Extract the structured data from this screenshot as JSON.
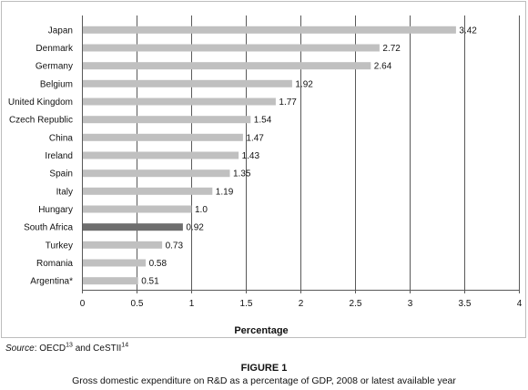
{
  "chart_data": {
    "type": "bar",
    "orientation": "horizontal",
    "categories": [
      "Japan",
      "Denmark",
      "Germany",
      "Belgium",
      "United Kingdom",
      "Czech Republic",
      "China",
      "Ireland",
      "Spain",
      "Italy",
      "Hungary",
      "South Africa",
      "Turkey",
      "Romania",
      "Argentina*"
    ],
    "values": [
      3.42,
      2.72,
      2.64,
      1.92,
      1.77,
      1.54,
      1.47,
      1.43,
      1.35,
      1.19,
      1.0,
      0.92,
      0.73,
      0.58,
      0.51
    ],
    "value_labels": [
      "3.42",
      "2.72",
      "2.64",
      "1.92",
      "1.77",
      "1.54",
      "1.47",
      "1.43",
      "1.35",
      "1.19",
      "1.0",
      "0.92",
      "0.73",
      "0.58",
      "0.51"
    ],
    "highlight_category": "South Africa",
    "xlabel": "Percentage",
    "xlim": [
      0,
      4
    ],
    "xticks": [
      0,
      0.5,
      1,
      1.5,
      2,
      2.5,
      3,
      3.5,
      4
    ],
    "xtick_labels": [
      "0",
      "0.5",
      "1",
      "1.5",
      "2",
      "2.5",
      "3",
      "3.5",
      "4"
    ],
    "grid": "vertical",
    "colors": {
      "bar": "#c0c0c0",
      "highlight_bar": "#6e6e6e",
      "gridline": "#595959"
    }
  },
  "source": {
    "label": "Source",
    "text_1": ": OECD",
    "ref_1": "13",
    "text_2": " and CeSTII",
    "ref_2": "14"
  },
  "figure": {
    "number": "FIGURE 1",
    "caption": "Gross domestic expenditure on R&D as a percentage of GDP, 2008 or latest available year"
  }
}
